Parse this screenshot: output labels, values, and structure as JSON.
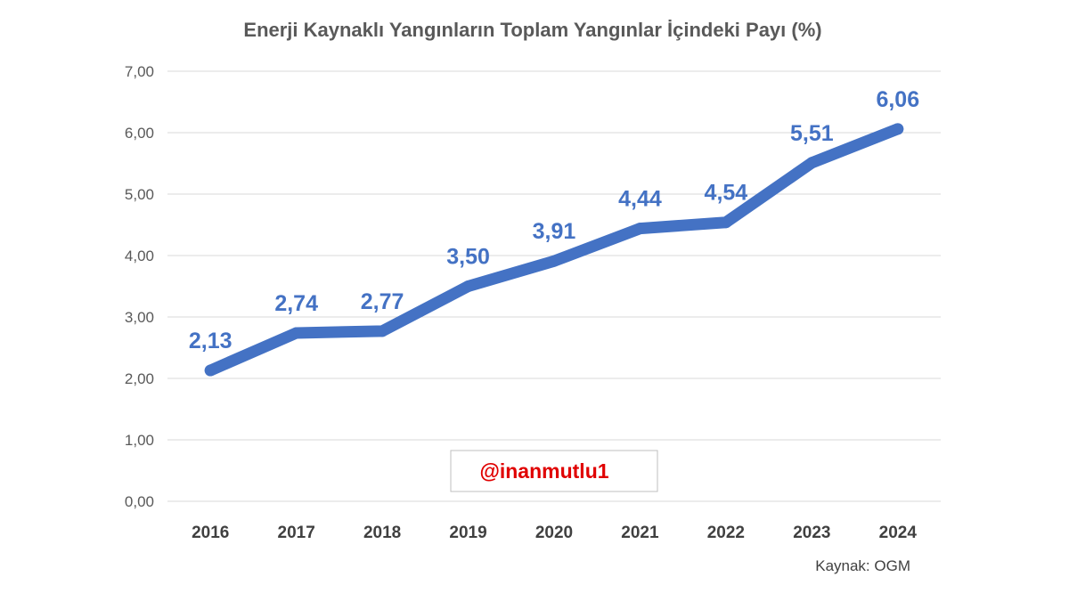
{
  "chart_data": {
    "type": "line",
    "title": "Enerji Kaynaklı Yangınların Toplam Yangınlar İçindeki Payı (%)",
    "categories": [
      "2016",
      "2017",
      "2018",
      "2019",
      "2020",
      "2021",
      "2022",
      "2023",
      "2024"
    ],
    "series": [
      {
        "values": [
          2.13,
          2.74,
          2.77,
          3.5,
          3.91,
          4.44,
          4.54,
          5.51,
          6.06
        ],
        "labels": [
          "2,13",
          "2,74",
          "2,77",
          "3,50",
          "3,91",
          "4,44",
          "4,54",
          "5,51",
          "6,06"
        ],
        "color": "#4472C4"
      }
    ],
    "ylim": [
      0,
      7
    ],
    "yticks": [
      "0,00",
      "1,00",
      "2,00",
      "3,00",
      "4,00",
      "5,00",
      "6,00",
      "7,00"
    ],
    "grid": true,
    "gridColor": "#d9d9d9"
  },
  "watermark": {
    "text": "@inanmutlu1",
    "color": "#e00000"
  },
  "source": "Kaynak: OGM"
}
